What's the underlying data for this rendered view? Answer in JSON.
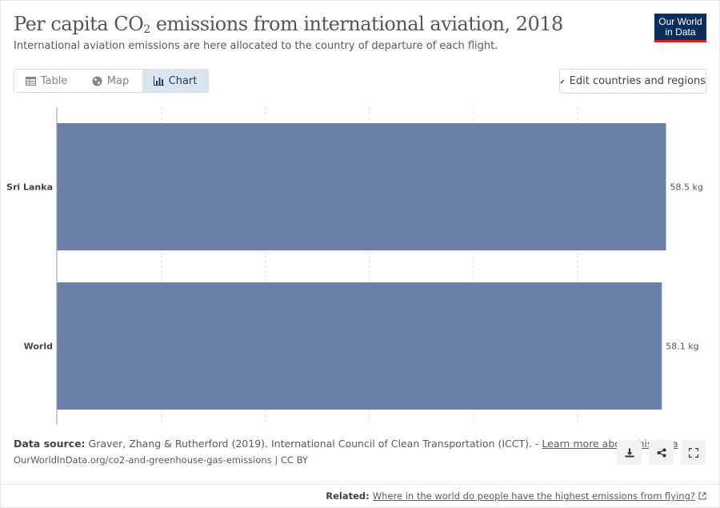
{
  "header": {
    "title_main": "Per capita CO",
    "title_sub": "2",
    "title_rest": " emissions from international aviation, 2018",
    "subtitle": "International aviation emissions are here allocated to the country of departure of each flight."
  },
  "logo": {
    "line1": "Our World",
    "line2": "in Data"
  },
  "tabs": [
    {
      "label": "Table",
      "icon": "table-icon"
    },
    {
      "label": "Map",
      "icon": "globe-icon"
    },
    {
      "label": "Chart",
      "icon": "chart-icon",
      "active": true
    }
  ],
  "edit_button": {
    "label": "Edit countries and regions",
    "icon": "pencil-icon"
  },
  "colors": {
    "bar": "#6a80a8",
    "axis": "#999999",
    "grid": "#dddddd",
    "accent": "#0b2e5a"
  },
  "chart_data": {
    "type": "bar",
    "orientation": "horizontal",
    "title": "Per capita CO2 emissions from international aviation, 2018",
    "categories": [
      "Sri Lanka",
      "World"
    ],
    "values": [
      58.5,
      58.1
    ],
    "value_labels": [
      "58.5 kg",
      "58.1 kg"
    ],
    "unit": "kg",
    "xlim": [
      0,
      60
    ],
    "gridlines": [
      10,
      20,
      30,
      40,
      50
    ],
    "grid": true
  },
  "footer": {
    "source_label": "Data source:",
    "source_text": " Graver, Zhang & Rutherford (2019). International Council of Clean Transportation (ICCT). - ",
    "learn_more": "Learn more about this data",
    "url_text": "OurWorldInData.org/co2-and-greenhouse-gas-emissions | CC BY",
    "related_label": "Related:",
    "related_link": "Where in the world do people have the highest emissions from flying?"
  }
}
